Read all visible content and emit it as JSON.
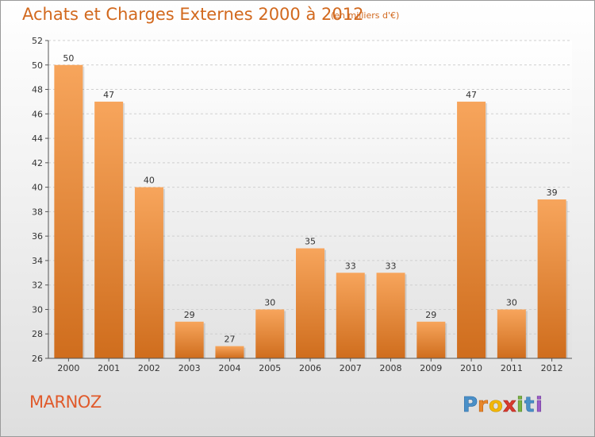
{
  "header": {
    "title": "Achats et Charges Externes 2000 à 2012",
    "subtitle": "(en milliers d'€)"
  },
  "footer": {
    "commune": "MARNOZ",
    "logo_text": "Proxiti"
  },
  "colors": {
    "bar_top": "#f7a55c",
    "bar_bottom": "#cf6d1d",
    "title": "#d2691e",
    "commune": "#e05a2b"
  },
  "chart_data": {
    "type": "bar",
    "categories": [
      "2000",
      "2001",
      "2002",
      "2003",
      "2004",
      "2005",
      "2006",
      "2007",
      "2008",
      "2009",
      "2010",
      "2011",
      "2012"
    ],
    "values": [
      50,
      47,
      40,
      29,
      27,
      30,
      35,
      33,
      33,
      29,
      47,
      30,
      39
    ],
    "ylim": [
      26,
      52
    ],
    "yticks": [
      26,
      28,
      30,
      32,
      34,
      36,
      38,
      40,
      42,
      44,
      46,
      48,
      50,
      52
    ],
    "grid": "horizontal-dashed",
    "data_labels": true
  }
}
